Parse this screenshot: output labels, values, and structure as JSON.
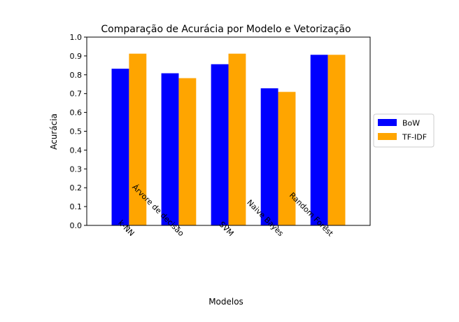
{
  "chart_data": {
    "type": "bar",
    "title": "Comparação de Acurácia por Modelo e Vetorização",
    "xlabel": "Modelos",
    "ylabel": "Acurácia",
    "ylim": [
      0,
      1.0
    ],
    "yticks": [
      "0.0",
      "0.1",
      "0.2",
      "0.3",
      "0.4",
      "0.5",
      "0.6",
      "0.7",
      "0.8",
      "0.9",
      "1.0"
    ],
    "categories": [
      "k-NN",
      "Árvore de decisão",
      "SVM",
      "Naive Bayes",
      "Random Forest"
    ],
    "series": [
      {
        "name": "BoW",
        "color": "#0000ff",
        "values": [
          0.832,
          0.808,
          0.856,
          0.728,
          0.906
        ]
      },
      {
        "name": "TF-IDF",
        "color": "#ffa500",
        "values": [
          0.912,
          0.782,
          0.912,
          0.709,
          0.906
        ]
      }
    ],
    "legend_position": "center-right",
    "grid": false
  }
}
